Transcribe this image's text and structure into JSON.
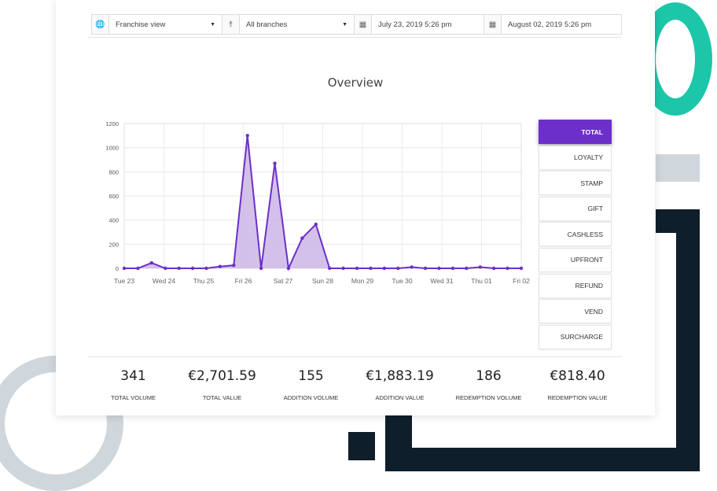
{
  "filters": {
    "view": "Franchise view",
    "branches": "All branches",
    "date_from": "July 23, 2019 5:26 pm",
    "date_to": "August 02, 2019 5:26 pm"
  },
  "overview_title": "Overview",
  "tabs": [
    "TOTAL",
    "LOYALTY",
    "STAMP",
    "GIFT",
    "CASHLESS",
    "UPFRONT",
    "REFUND",
    "VEND",
    "SURCHARGE"
  ],
  "active_tab": "TOTAL",
  "chart_data": {
    "type": "area",
    "y_ticks": [
      0,
      200,
      400,
      600,
      800,
      1000,
      1200
    ],
    "ylim": [
      0,
      1200
    ],
    "x_tick_labels": [
      "Tue 23",
      "Wed 24",
      "Thu 25",
      "Fri 26",
      "Sat 27",
      "Sun 28",
      "Mon 29",
      "Tue 30",
      "Wed 31",
      "Thu 01",
      "Fri 02"
    ],
    "values": [
      0,
      0,
      45,
      0,
      0,
      0,
      0,
      15,
      25,
      1100,
      0,
      870,
      0,
      250,
      365,
      0,
      0,
      0,
      0,
      0,
      0,
      10,
      0,
      0,
      0,
      0,
      10,
      0,
      0,
      0
    ],
    "color": "#6c2fc9",
    "fill": "#cbb6e6",
    "grid": true
  },
  "stats": [
    {
      "value": "341",
      "label": "TOTAL VOLUME"
    },
    {
      "value": "€2,701.59",
      "label": "TOTAL VALUE"
    },
    {
      "value": "155",
      "label": "ADDITION VOLUME"
    },
    {
      "value": "€1,883.19",
      "label": "ADDITION VALUE"
    },
    {
      "value": "186",
      "label": "REDEMPTION VOLUME"
    },
    {
      "value": "€818.40",
      "label": "REDEMPTION VALUE"
    }
  ]
}
